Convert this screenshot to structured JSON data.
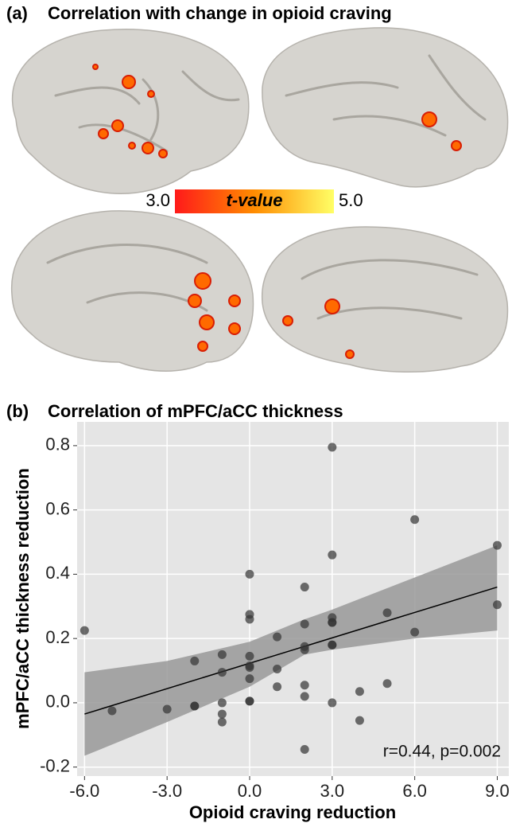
{
  "panel_a": {
    "label": "(a)",
    "title": "Correlation with change in opioid craving",
    "colorbar": {
      "label": "t-value",
      "ticks": [
        {
          "value": 3,
          "label": "3.0"
        },
        {
          "value": 5,
          "label": "5.0"
        }
      ],
      "colors": [
        "#ff1a1a",
        "#ff8c00",
        "#ffff66"
      ]
    }
  },
  "chart_data": {
    "type": "scatter",
    "panel_label": "(b)",
    "title": "Correlation of mPFC/aCC thickness",
    "x_label": "Opioid craving reduction",
    "y_label": "mPFC/aCC thickness reduction",
    "annotation": "r=0.44, p=0.002",
    "color": "#333333",
    "grid": true,
    "x": [
      -6,
      -5,
      -3,
      -2,
      -2,
      -2,
      -1,
      -1,
      -1,
      -1,
      -1,
      0,
      0,
      0,
      0,
      0,
      0,
      0,
      0,
      0,
      1,
      1,
      1,
      2,
      2,
      2,
      2,
      2,
      2,
      2,
      3,
      3,
      3,
      3,
      3,
      3,
      3,
      3,
      4,
      4,
      5,
      5,
      6,
      6,
      9,
      9
    ],
    "values": [
      0.225,
      -0.025,
      -0.02,
      0.13,
      -0.01,
      -0.01,
      0.15,
      0.095,
      0.0,
      -0.035,
      -0.06,
      0.4,
      0.275,
      0.26,
      0.145,
      0.115,
      0.11,
      0.075,
      0.005,
      0.005,
      0.205,
      0.105,
      0.05,
      0.36,
      0.245,
      0.175,
      0.165,
      0.055,
      0.02,
      -0.145,
      0.795,
      0.46,
      0.265,
      0.25,
      0.25,
      0.18,
      0.18,
      0.0,
      0.035,
      -0.055,
      0.28,
      0.06,
      0.57,
      0.22,
      0.49,
      0.305
    ],
    "fit": {
      "x": [
        -6,
        9
      ],
      "y": [
        -0.035,
        0.36
      ],
      "color": "#000000"
    },
    "band": {
      "x": [
        -6,
        -3,
        0,
        2,
        3,
        6,
        9
      ],
      "lower": [
        -0.165,
        -0.06,
        0.05,
        0.15,
        0.165,
        0.2,
        0.225
      ],
      "upper": [
        0.095,
        0.13,
        0.19,
        0.26,
        0.29,
        0.39,
        0.49
      ],
      "color": "#999999"
    },
    "xlim": [
      -6.27,
      9.42
    ],
    "ylim": [
      -0.228,
      0.874
    ],
    "xticks": [
      {
        "value": -6,
        "label": "-6.0"
      },
      {
        "value": -3,
        "label": "-3.0"
      },
      {
        "value": 0,
        "label": "0.0"
      },
      {
        "value": 3,
        "label": "3.0"
      },
      {
        "value": 6,
        "label": "6.0"
      },
      {
        "value": 9,
        "label": "9.0"
      }
    ],
    "yticks": [
      -0.2,
      {
        "value": 0,
        "label": "0.0"
      },
      0.2,
      0.4,
      0.6,
      0.8
    ]
  }
}
